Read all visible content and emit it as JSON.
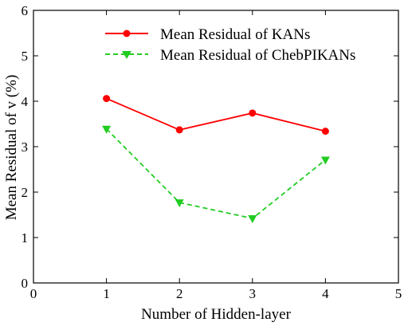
{
  "chart_data": {
    "type": "line",
    "xlabel": "Number of Hidden-layer",
    "ylabel": "Mean Residual of v (%)",
    "xlim": [
      0,
      5
    ],
    "ylim": [
      0,
      6
    ],
    "xticks": [
      "0",
      "1",
      "2",
      "3",
      "4",
      "5"
    ],
    "yticks": [
      "0",
      "1",
      "2",
      "3",
      "4",
      "5",
      "6"
    ],
    "grid": false,
    "legend_position": "top-center",
    "series": [
      {
        "name": "Mean Residual of KANs",
        "color": "#ff0000",
        "marker": "circle",
        "line_style": "solid",
        "x": [
          1,
          2,
          3,
          4
        ],
        "y": [
          4.06,
          3.37,
          3.74,
          3.34
        ]
      },
      {
        "name": "Mean Residual of ChebPIKANs",
        "color": "#22cc22",
        "marker": "triangle-down",
        "line_style": "dashed",
        "x": [
          1,
          2,
          3,
          4
        ],
        "y": [
          3.39,
          1.77,
          1.42,
          2.71
        ]
      }
    ]
  }
}
